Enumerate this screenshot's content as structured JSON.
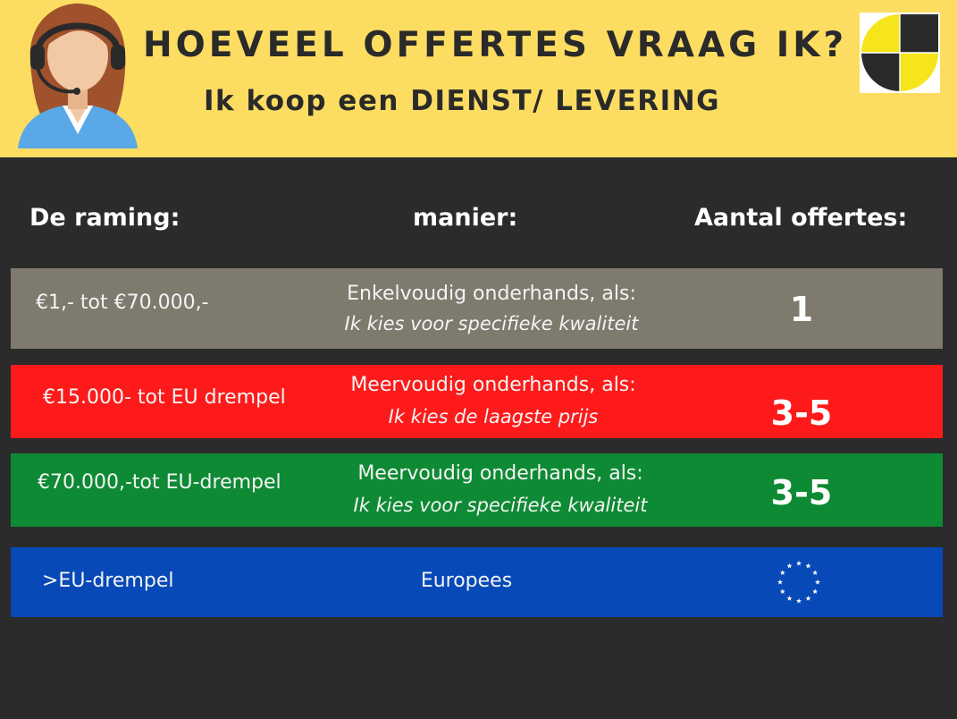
{
  "header": {
    "title": "HOEVEEL OFFERTES VRAAG IK?",
    "subtitle": "Ik koop een DIENST/ LEVERING"
  },
  "columns": {
    "raming": "De raming:",
    "manier": "manier:",
    "aantal": "Aantal offertes:"
  },
  "rows": [
    {
      "raming": "€1,- tot €70.000,-",
      "manier": "Enkelvoudig onderhands, als:",
      "condition": "Ik kies voor specifieke kwaliteit",
      "aantal": "1",
      "color": "#7f7a6e"
    },
    {
      "raming": "€15.000- tot EU drempel",
      "manier": "Meervoudig onderhands, als:",
      "condition": "Ik kies de laagste prijs",
      "aantal": "3-5",
      "color": "#fe1a1a"
    },
    {
      "raming": "€70.000,-tot EU-drempel",
      "manier": "Meervoudig onderhands, als:",
      "condition": "Ik kies voor specifieke kwaliteit",
      "aantal": "3-5",
      "color": "#0e8a34"
    },
    {
      "raming": ">EU-drempel",
      "manier": "Europees",
      "aantal_icon": "eu-flag-stars-icon",
      "color": "#0749b7"
    }
  ],
  "icons": {
    "avatar": "call-center-agent-icon",
    "logo": "yellow-black-geometric-logo-icon"
  },
  "colors": {
    "header_bg": "#fcdd62",
    "page_bg": "#2b2b2b"
  }
}
